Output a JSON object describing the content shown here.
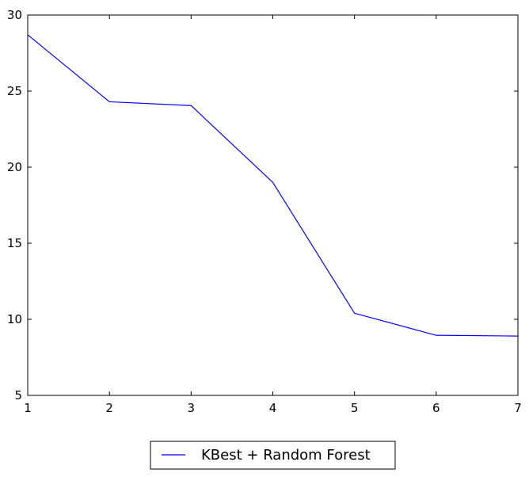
{
  "chart_data": {
    "type": "line",
    "x": [
      1,
      2,
      3,
      4,
      5,
      6,
      7
    ],
    "series": [
      {
        "name": "KBest + Random Forest",
        "color": "#0000ff",
        "values": [
          28.7,
          24.3,
          24.05,
          19.0,
          10.4,
          8.95,
          8.9
        ]
      }
    ],
    "xlim": [
      1,
      7
    ],
    "ylim": [
      5,
      30
    ],
    "xticks": [
      1,
      2,
      3,
      4,
      5,
      6,
      7
    ],
    "yticks": [
      5,
      10,
      15,
      20,
      25,
      30
    ],
    "xtick_labels": [
      "1",
      "2",
      "3",
      "4",
      "5",
      "6",
      "7"
    ],
    "ytick_labels": [
      "5",
      "10",
      "15",
      "20",
      "25",
      "30"
    ],
    "title": "",
    "xlabel": "",
    "ylabel": "",
    "grid": false,
    "legend_placement": "bottom-center"
  }
}
